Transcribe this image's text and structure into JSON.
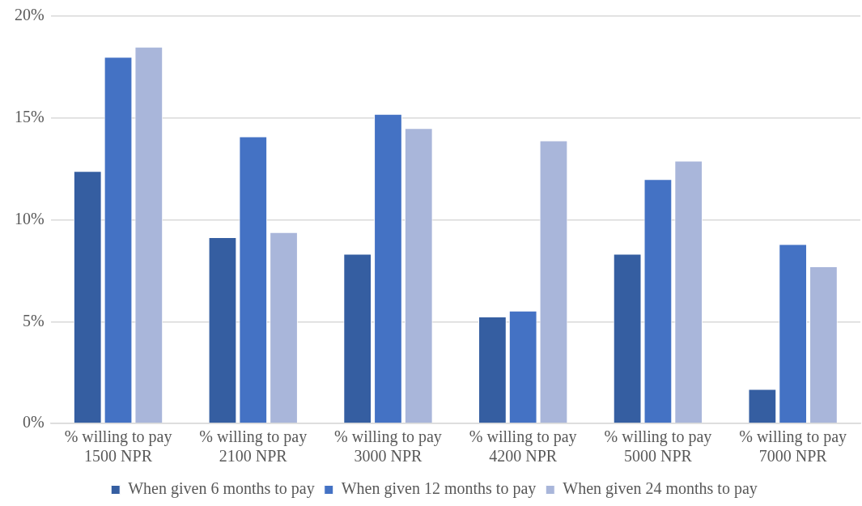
{
  "chart_data": {
    "type": "bar",
    "categories": [
      "% willing to pay 1500 NPR",
      "% willing to pay 2100 NPR",
      "% willing to pay 3000 NPR",
      "% willing to pay 4200 NPR",
      "% willing to pay 5000 NPR",
      "% willing to pay 7000 NPR"
    ],
    "series": [
      {
        "name": "When given 6 months to pay",
        "color": "#355ea1",
        "values": [
          12.4,
          9.15,
          8.33,
          5.25,
          8.33,
          1.69
        ]
      },
      {
        "name": "When given 12 months to pay",
        "color": "#4472c4",
        "values": [
          18.0,
          14.1,
          15.2,
          5.54,
          12.0,
          8.81
        ]
      },
      {
        "name": "When given 24 months to pay",
        "color": "#a9b6da",
        "values": [
          18.5,
          9.39,
          14.5,
          13.9,
          12.9,
          7.71
        ]
      }
    ],
    "ylim": [
      0,
      20
    ],
    "yticks": [
      {
        "value": 0,
        "label": "0%"
      },
      {
        "value": 5,
        "label": "5%"
      },
      {
        "value": 10,
        "label": "10%"
      },
      {
        "value": 15,
        "label": "15%"
      },
      {
        "value": 20,
        "label": "20%"
      }
    ],
    "grid": "y",
    "legend": "bottom"
  }
}
